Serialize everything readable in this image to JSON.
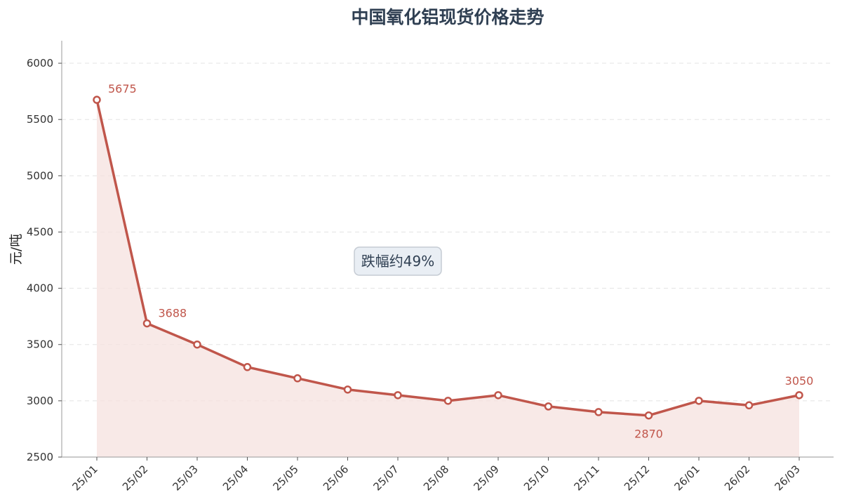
{
  "chart_data": {
    "type": "line",
    "title": "中国氧化铝现货价格走势",
    "ylabel": "元/吨",
    "xlabel": "",
    "categories": [
      "25/01",
      "25/02",
      "25/03",
      "25/04",
      "25/05",
      "25/06",
      "25/07",
      "25/08",
      "25/09",
      "25/10",
      "25/11",
      "25/12",
      "26/01",
      "26/02",
      "26/03"
    ],
    "series": [
      {
        "values": [
          5675,
          3688,
          3500,
          3300,
          3200,
          3100,
          3050,
          3000,
          3050,
          2950,
          2900,
          2870,
          3000,
          2960,
          3050
        ]
      }
    ],
    "ylim": [
      2500,
      6200
    ],
    "yticks": [
      2500,
      3000,
      3500,
      4000,
      4500,
      5000,
      5500,
      6000
    ],
    "grid": "horizontal-dashed",
    "fill_under_line": true,
    "data_labels": [
      {
        "index": 0,
        "text": "5675"
      },
      {
        "index": 1,
        "text": "3688"
      },
      {
        "index": 11,
        "text": "2870"
      },
      {
        "index": 14,
        "text": "3050"
      }
    ],
    "annotation": {
      "text": "跌幅约49%"
    },
    "colors": {
      "line": "#c0564b",
      "fill": "#f6e2df",
      "title": "#2f3f52",
      "grid": "#e3e3e3",
      "annotation_bg": "#e9eef4",
      "annotation_border": "#c6ccd4"
    }
  }
}
